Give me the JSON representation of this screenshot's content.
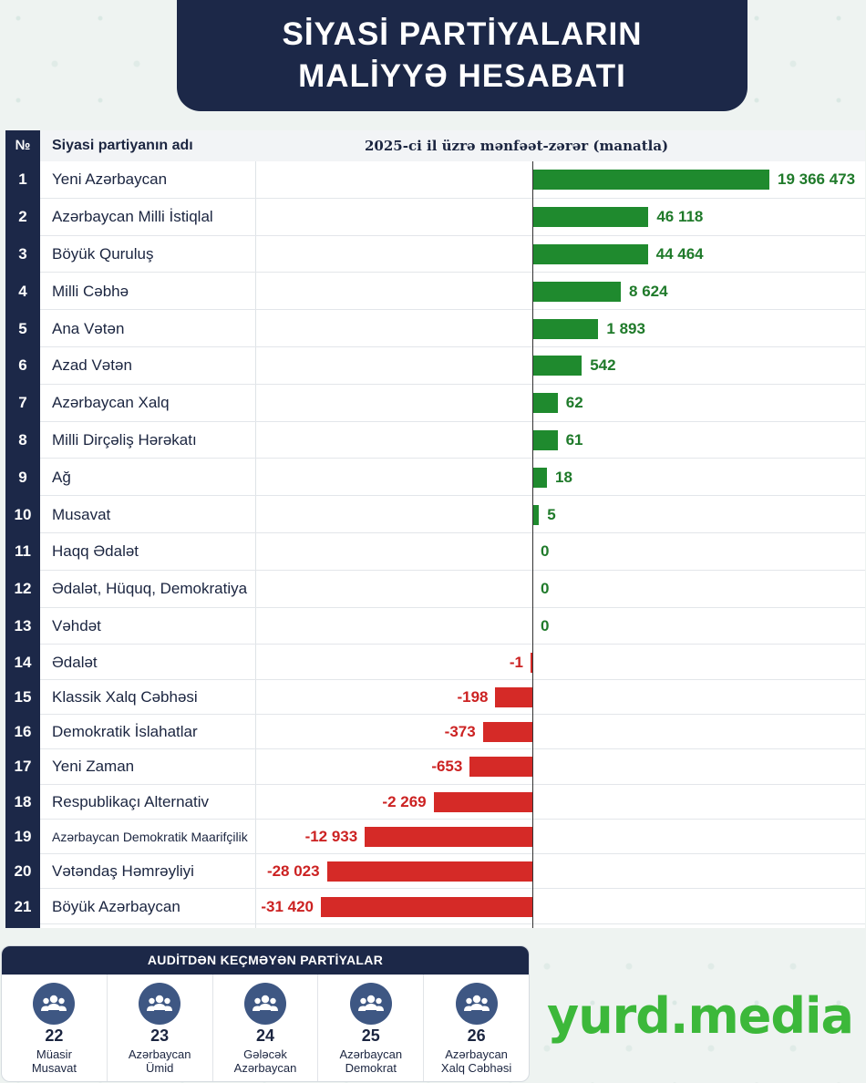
{
  "header": {
    "line1": "SİYASİ PARTİYALARIN",
    "line2": "MALİYYƏ HESABATI"
  },
  "table": {
    "col_no": "№",
    "col_name": "Siyasi partiyanın adı",
    "col_chart": "2025-ci il üzrə mənfəət-zərər (manatla)"
  },
  "chart_data": {
    "type": "bar",
    "orientation": "horizontal",
    "title": "2025-ci il üzrə mənfəət-zərər (manatla)",
    "note": "Bars are not drawn to a single linear scale in the original",
    "rows": [
      {
        "no": "1",
        "name": "Yeni Azərbaycan",
        "value": 19366473,
        "label": "19 366 473"
      },
      {
        "no": "2",
        "name": "Azərbaycan Milli İstiqlal",
        "value": 46118,
        "label": "46 118"
      },
      {
        "no": "3",
        "name": "Böyük Quruluş",
        "value": 44464,
        "label": "44 464"
      },
      {
        "no": "4",
        "name": "Milli Cəbhə",
        "value": 8624,
        "label": "8 624"
      },
      {
        "no": "5",
        "name": "Ana Vətən",
        "value": 1893,
        "label": "1 893"
      },
      {
        "no": "6",
        "name": "Azad Vətən",
        "value": 542,
        "label": "542"
      },
      {
        "no": "7",
        "name": "Azərbaycan Xalq",
        "value": 62,
        "label": "62"
      },
      {
        "no": "8",
        "name": "Milli Dirçəliş Hərəkatı",
        "value": 61,
        "label": "61"
      },
      {
        "no": "9",
        "name": "Ağ",
        "value": 18,
        "label": "18"
      },
      {
        "no": "10",
        "name": "Musavat",
        "value": 5,
        "label": "5"
      },
      {
        "no": "11",
        "name": "Haqq Ədalət",
        "value": 0,
        "label": "0"
      },
      {
        "no": "12",
        "name": "Ədalət, Hüquq, Demokratiya",
        "value": 0,
        "label": "0"
      },
      {
        "no": "13",
        "name": "Vəhdət",
        "value": 0,
        "label": "0"
      },
      {
        "no": "14",
        "name": "Ədalət",
        "value": -1,
        "label": "-1"
      },
      {
        "no": "15",
        "name": "Klassik Xalq Cəbhəsi",
        "value": -198,
        "label": "-198"
      },
      {
        "no": "16",
        "name": "Demokratik İslahatlar",
        "value": -373,
        "label": "-373"
      },
      {
        "no": "17",
        "name": "Yeni Zaman",
        "value": -653,
        "label": "-653"
      },
      {
        "no": "18",
        "name": "Respublikaçı Alternativ",
        "value": -2269,
        "label": "-2 269"
      },
      {
        "no": "19",
        "name": "Azərbaycan Demokratik Maarifçilik",
        "value": -12933,
        "label": "-12 933"
      },
      {
        "no": "20",
        "name": "Vətəndaş Həmrəyliyi",
        "value": -28023,
        "label": "-28 023"
      },
      {
        "no": "21",
        "name": "Böyük Azərbaycan",
        "value": -31420,
        "label": "-31 420"
      }
    ],
    "colors": {
      "positive": "#1f8a2e",
      "negative": "#d52a27"
    }
  },
  "audit": {
    "title": "AUDİTDƏN KEÇMƏYƏN PARTİYALAR",
    "icon": "people-group-icon",
    "items": [
      {
        "num": "22",
        "name": [
          "Müasir",
          "Musavat"
        ]
      },
      {
        "num": "23",
        "name": [
          "Azərbaycan",
          "Ümid"
        ]
      },
      {
        "num": "24",
        "name": [
          "Gələcək",
          "Azərbaycan"
        ]
      },
      {
        "num": "25",
        "name": [
          "Azərbaycan",
          "Demokrat"
        ]
      },
      {
        "num": "26",
        "name": [
          "Azərbaycan",
          "Xalq Cəbhəsi"
        ]
      }
    ]
  },
  "logo": {
    "text": "yurd.media",
    "color": "#3cb83a"
  }
}
